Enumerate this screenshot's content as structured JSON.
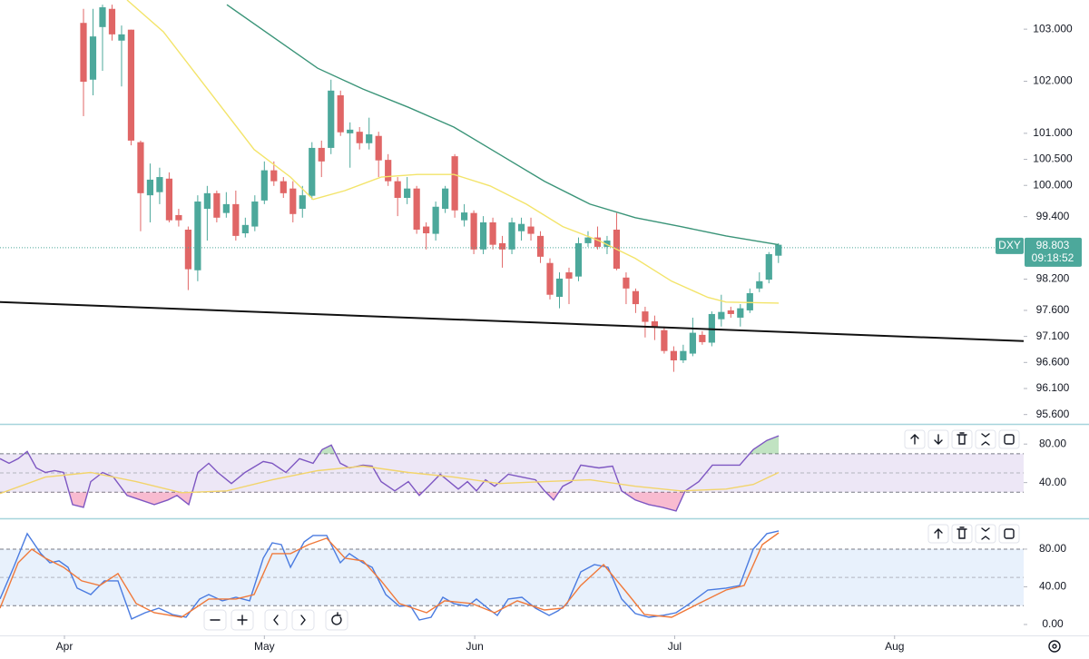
{
  "chart_data": [
    {
      "type": "candlestick",
      "symbol": "DXY",
      "last_price": 98.803,
      "countdown": "09:18:52",
      "up_color": "#4ca89b",
      "down_color": "#e06666",
      "ylim": [
        95.42,
        103.56
      ],
      "yticks": [
        {
          "value": 103,
          "label": "103.000"
        },
        {
          "value": 102,
          "label": "102.000"
        },
        {
          "value": 101,
          "label": "101.000"
        },
        {
          "value": 100.5,
          "label": "100.500"
        },
        {
          "value": 100,
          "label": "100.000"
        },
        {
          "value": 99.4,
          "label": "99.400"
        },
        {
          "value": 98.2,
          "label": "98.200"
        },
        {
          "value": 97.6,
          "label": "97.600"
        },
        {
          "value": 97.1,
          "label": "97.100"
        },
        {
          "value": 96.6,
          "label": "96.600"
        },
        {
          "value": 96.1,
          "label": "96.100"
        },
        {
          "value": 95.6,
          "label": "95.600"
        }
      ],
      "x": [
        2,
        3,
        4,
        5,
        6,
        7,
        8,
        9,
        10,
        11,
        12,
        13,
        14,
        15,
        16,
        17,
        18,
        19,
        20,
        21,
        22,
        23,
        24,
        25,
        26,
        27,
        28,
        29,
        30,
        31,
        32,
        33,
        34,
        35,
        36,
        37,
        38,
        39,
        40,
        41,
        42,
        43,
        44,
        45,
        46,
        47,
        48,
        49,
        50,
        51,
        52,
        53,
        54,
        55,
        56,
        57,
        58,
        59,
        60,
        61,
        62,
        63,
        64,
        65,
        66,
        67,
        68,
        69,
        70,
        71,
        72,
        73,
        74,
        75
      ],
      "open": [
        103.12,
        102.03,
        103.04,
        103.39,
        102.78,
        102.99,
        100.83,
        99.81,
        99.87,
        100.13,
        99.43,
        99.15,
        98.37,
        99.55,
        99.85,
        99.47,
        99.64,
        99.08,
        99.21,
        99.71,
        100.29,
        100.08,
        99.94,
        99.55,
        99.8,
        100.72,
        100.72,
        101.73,
        101.0,
        101.03,
        100.81,
        100.95,
        100.49,
        100.08,
        99.76,
        99.94,
        99.21,
        99.07,
        99.55,
        100.56,
        99.33,
        99.47,
        98.77,
        99.29,
        98.89,
        98.77,
        99.12,
        99.21,
        99.03,
        98.51,
        97.86,
        98.33,
        98.25,
        98.89,
        99.0,
        98.82,
        99.15,
        98.23,
        97.97,
        97.58,
        97.39,
        97.22,
        96.82,
        96.64,
        96.77,
        97.13,
        96.98,
        97.43,
        97.6,
        97.46,
        97.6,
        98.02,
        98.19,
        98.65
      ],
      "high": [
        103.39,
        103.39,
        103.47,
        103.47,
        103.07,
        102.99,
        100.86,
        100.42,
        100.34,
        100.25,
        99.55,
        99.21,
        99.81,
        99.99,
        99.9,
        99.87,
        99.9,
        99.38,
        99.81,
        100.46,
        100.46,
        100.16,
        100.08,
        99.99,
        100.83,
        100.86,
        102.03,
        101.82,
        101.21,
        101.12,
        101.3,
        101.03,
        100.6,
        100.16,
        100.16,
        99.99,
        99.29,
        99.69,
        99.99,
        100.6,
        99.64,
        99.52,
        99.41,
        99.38,
        99.03,
        99.38,
        99.38,
        99.38,
        99.12,
        98.6,
        98.33,
        98.42,
        99.0,
        99.12,
        99.21,
        99.03,
        99.47,
        98.33,
        98.02,
        97.67,
        97.5,
        97.29,
        96.91,
        96.94,
        97.46,
        97.2,
        97.58,
        97.9,
        97.67,
        97.72,
        98.02,
        98.33,
        98.72,
        98.89
      ],
      "low": [
        101.33,
        101.73,
        102.2,
        102.78,
        101.9,
        100.77,
        99.12,
        99.29,
        99.64,
        99.29,
        99.21,
        97.99,
        98.16,
        98.94,
        99.29,
        99.38,
        98.94,
        99.0,
        99.12,
        99.64,
        99.99,
        99.76,
        99.29,
        99.38,
        99.73,
        100.16,
        100.6,
        100.95,
        100.34,
        100.69,
        100.69,
        100.16,
        99.99,
        99.41,
        99.64,
        99.07,
        98.77,
        98.94,
        99.47,
        99.38,
        99.21,
        98.68,
        98.68,
        98.77,
        98.42,
        98.68,
        98.94,
        98.94,
        98.51,
        97.81,
        97.64,
        97.72,
        98.16,
        98.82,
        98.77,
        98.68,
        98.37,
        97.72,
        97.55,
        97.08,
        97.03,
        96.77,
        96.42,
        96.59,
        96.72,
        96.94,
        96.91,
        97.29,
        97.46,
        97.29,
        97.55,
        97.95,
        98.12,
        98.51
      ],
      "close": [
        101.99,
        102.86,
        103.42,
        102.9,
        102.9,
        100.86,
        99.85,
        100.11,
        100.16,
        99.33,
        99.33,
        98.39,
        99.69,
        99.85,
        99.38,
        99.64,
        99.03,
        99.24,
        99.69,
        100.29,
        100.08,
        99.85,
        99.45,
        99.81,
        100.72,
        100.46,
        101.82,
        101.02,
        101.07,
        100.81,
        100.98,
        100.48,
        100.08,
        99.76,
        99.94,
        99.15,
        99.08,
        99.59,
        99.94,
        99.52,
        99.48,
        98.77,
        99.29,
        98.86,
        98.77,
        99.29,
        99.26,
        99.07,
        98.63,
        97.9,
        98.21,
        98.21,
        98.89,
        99.0,
        98.82,
        98.94,
        98.4,
        98.02,
        97.72,
        97.38,
        97.29,
        96.82,
        96.64,
        96.82,
        97.17,
        96.99,
        97.53,
        97.57,
        97.53,
        97.64,
        97.93,
        98.16,
        98.68,
        98.86
      ],
      "series": [
        {
          "color": "#3a9478",
          "x": [
            17.06,
            21.83,
            26.6,
            31.36,
            36.13,
            40.9,
            45.66,
            50.43,
            55.2,
            59.96,
            64.73,
            69.5,
            75.0
          ],
          "values": [
            103.47,
            102.86,
            102.25,
            101.85,
            101.5,
            101.12,
            100.6,
            100.08,
            99.64,
            99.38,
            99.21,
            99.03,
            98.86
          ]
        },
        {
          "color": "#f3e46a",
          "x": [
            6.58,
            10.39,
            15.16,
            19.92,
            23.74,
            26.12,
            29.46,
            33.27,
            37.08,
            40.9,
            44.71,
            48.52,
            52.34,
            56.15,
            59.96,
            63.78,
            67.59,
            69.5,
            75.03
          ],
          "values": [
            103.56,
            102.95,
            101.82,
            100.69,
            100.16,
            99.73,
            99.9,
            100.16,
            100.21,
            100.21,
            99.99,
            99.64,
            99.21,
            98.94,
            98.6,
            98.16,
            97.85,
            97.76,
            97.74
          ]
        },
        {
          "color": "#111111",
          "x": [
            -6.77,
            100.76
          ],
          "values": [
            97.76,
            97.01
          ]
        }
      ]
    },
    {
      "type": "line",
      "ylim": [
        2.9,
        100
      ],
      "yticks": [
        {
          "value": 80,
          "label": "80.00"
        },
        {
          "value": 40,
          "label": "40.00"
        }
      ],
      "bands": [
        30,
        70
      ],
      "midline": 50,
      "band_color": "#ede7f6",
      "fills": true,
      "series": [
        {
          "color": "#7e57c2",
          "x": [
            -6.77,
            -5.82,
            -4.86,
            -3.91,
            -2.96,
            -2.0,
            -1.05,
            -0.1,
            0.86,
            2.0,
            2.76,
            4.0,
            5.15,
            6.58,
            8.01,
            9.44,
            10.87,
            11.82,
            13.06,
            14.01,
            15.16,
            16.11,
            17.54,
            18.97,
            20.88,
            21.83,
            23.26,
            24.69,
            26.12,
            27.07,
            28.03,
            28.98,
            29.93,
            31.36,
            32.32,
            33.27,
            34.7,
            36.13,
            37.27,
            38.23,
            39.47,
            40.42,
            41.37,
            42.33,
            43.28,
            44.23,
            45.19,
            46.62,
            48.05,
            49.48,
            50.43,
            51.38,
            52.34,
            53.29,
            54.24,
            56.15,
            57.58,
            58.53,
            59.96,
            61.39,
            62.82,
            64.25,
            65.2,
            66.63,
            68.06,
            69.5,
            70.93,
            72.35,
            73.78,
            75.03
          ],
          "values": [
            64.8,
            60.0,
            64.8,
            72.4,
            55.2,
            50.5,
            52.4,
            50.5,
            17.1,
            14.3,
            41.0,
            50.5,
            45.7,
            26.7,
            21.9,
            17.1,
            21.9,
            26.7,
            17.1,
            50.5,
            60.0,
            50.5,
            39.0,
            50.5,
            61.9,
            60.0,
            50.5,
            64.8,
            60.0,
            74.3,
            79.0,
            60.0,
            55.2,
            58.1,
            57.1,
            41.0,
            31.4,
            41.0,
            26.7,
            36.2,
            48.6,
            41.0,
            33.3,
            41.0,
            31.4,
            42.9,
            36.2,
            48.6,
            45.7,
            42.9,
            31.4,
            21.9,
            36.2,
            41.0,
            58.1,
            55.2,
            57.1,
            31.4,
            21.9,
            17.1,
            14.3,
            10.5,
            31.4,
            41.0,
            58.1,
            58.1,
            58.1,
            74.3,
            83.8,
            88.6
          ]
        },
        {
          "color": "#f2d46b",
          "x": [
            -6.77,
            -2.0,
            2.76,
            7.53,
            12.3,
            17.06,
            21.83,
            26.6,
            31.36,
            36.13,
            40.9,
            45.66,
            50.43,
            55.2,
            59.96,
            64.73,
            69.5,
            72.35,
            75.03
          ],
          "values": [
            28.6,
            45.7,
            50.5,
            41.0,
            29.5,
            31.4,
            42.9,
            52.4,
            57.1,
            50.5,
            45.7,
            39.0,
            41.0,
            42.9,
            36.2,
            31.4,
            33.3,
            38.1,
            50.5
          ]
        }
      ]
    },
    {
      "type": "line",
      "ylim": [
        -11.6,
        110.8
      ],
      "yticks": [
        {
          "value": 80,
          "label": "80.00"
        },
        {
          "value": 40,
          "label": "40.00"
        },
        {
          "value": 0,
          "label": "0.00"
        }
      ],
      "bands": [
        20,
        80
      ],
      "midline": 50,
      "band_color": "#e8f1fc",
      "xlim": [
        -6.77,
        100.76
      ],
      "xticks": [
        {
          "value": 0,
          "label": "Apr"
        },
        {
          "value": 21,
          "label": "May"
        },
        {
          "value": 43.1,
          "label": "Jun"
        },
        {
          "value": 64.1,
          "label": "Jul"
        },
        {
          "value": 87.2,
          "label": "Aug"
        }
      ],
      "series": [
        {
          "color": "#4a7be0",
          "x": [
            -6.77,
            -5.34,
            -3.91,
            -2.48,
            -1.53,
            -0.57,
            0.38,
            1.33,
            2.76,
            4.19,
            5.62,
            7.05,
            8.48,
            9.91,
            11.34,
            12.77,
            14.2,
            15.16,
            16.59,
            18.02,
            19.45,
            20.88,
            21.83,
            22.78,
            23.74,
            25.17,
            26.12,
            27.55,
            28.98,
            29.93,
            31.36,
            32.32,
            33.75,
            35.18,
            36.32,
            37.27,
            38.51,
            39.75,
            40.9,
            42.33,
            43.28,
            44.71,
            45.47,
            46.62,
            48.05,
            49.48,
            50.91,
            51.86,
            52.81,
            54.24,
            55.67,
            57.1,
            58.53,
            59.96,
            61.39,
            62.82,
            64.25,
            65.68,
            67.59,
            69.5,
            70.93,
            72.35,
            73.78,
            75.03
          ],
          "values": [
            27.0,
            60.7,
            96.4,
            75.2,
            65.5,
            67.5,
            60.7,
            38.6,
            31.8,
            46.3,
            46.3,
            5.8,
            12.5,
            17.3,
            10.6,
            7.7,
            27.0,
            31.8,
            25.1,
            28.9,
            25.1,
            70.4,
            86.7,
            84.8,
            60.7,
            87.7,
            94.5,
            94.5,
            65.5,
            75.2,
            65.5,
            60.7,
            31.8,
            19.3,
            20.2,
            4.8,
            7.7,
            28.9,
            22.2,
            19.3,
            27.0,
            15.4,
            9.6,
            27.0,
            28.9,
            17.3,
            9.6,
            14.5,
            22.2,
            55.9,
            63.6,
            60.7,
            27.0,
            11.6,
            7.7,
            9.6,
            12.5,
            22.2,
            36.6,
            38.6,
            41.4,
            80.0,
            96.4,
            99.3
          ]
        },
        {
          "color": "#f0793a",
          "x": [
            -6.77,
            -4.86,
            -3.43,
            -2.0,
            -0.1,
            1.81,
            3.72,
            5.62,
            7.53,
            9.44,
            12.3,
            15.16,
            18.02,
            19.92,
            21.83,
            23.74,
            25.64,
            27.55,
            29.46,
            31.36,
            33.27,
            35.18,
            38.04,
            39.94,
            42.8,
            45.19,
            47.57,
            50.43,
            52.34,
            54.24,
            56.63,
            59.01,
            60.92,
            63.78,
            66.63,
            69.5,
            71.4,
            73.31,
            75.03
          ],
          "values": [
            17.3,
            65.5,
            80.0,
            70.4,
            60.7,
            46.3,
            41.4,
            54.0,
            22.2,
            12.5,
            7.7,
            27.0,
            27.0,
            31.8,
            75.2,
            75.2,
            84.8,
            91.6,
            70.4,
            67.5,
            46.3,
            22.2,
            12.5,
            25.1,
            22.2,
            12.5,
            25.1,
            15.4,
            17.3,
            41.4,
            63.6,
            34.7,
            10.6,
            7.7,
            22.2,
            36.6,
            41.4,
            84.8,
            97.3
          ]
        }
      ]
    }
  ]
}
